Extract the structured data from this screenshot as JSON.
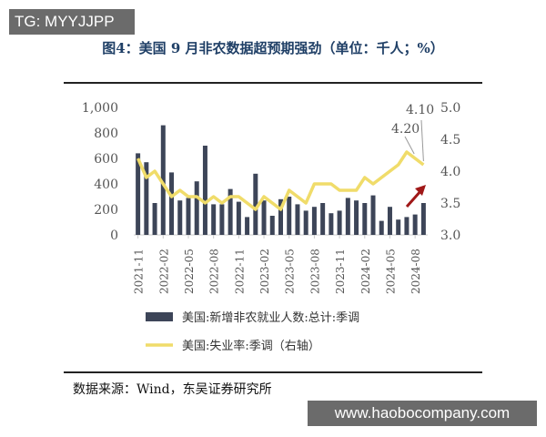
{
  "watermark_top": "TG: MYYJJPP",
  "watermark_bottom": "www.haobocompany.com",
  "title": "图4：美国 9 月非农数据超预期强劲（单位：千人；%）",
  "source": "数据来源：Wind，东吴证券研究所",
  "chart_data": {
    "type": "bar+line",
    "title": "图4：美国 9 月非农数据超预期强劲（单位：千人；%）",
    "categories": [
      "2021-11",
      "2021-12",
      "2022-01",
      "2022-02",
      "2022-03",
      "2022-04",
      "2022-05",
      "2022-06",
      "2022-07",
      "2022-08",
      "2022-09",
      "2022-10",
      "2022-11",
      "2022-12",
      "2023-01",
      "2023-02",
      "2023-03",
      "2023-04",
      "2023-05",
      "2023-06",
      "2023-07",
      "2023-08",
      "2023-09",
      "2023-10",
      "2023-11",
      "2023-12",
      "2024-01",
      "2024-02",
      "2024-03",
      "2024-04",
      "2024-05",
      "2024-06",
      "2024-07",
      "2024-08",
      "2024-09"
    ],
    "x_tick_labels": [
      "2021-11",
      "2022-02",
      "2022-05",
      "2022-08",
      "2022-11",
      "2023-02",
      "2023-05",
      "2023-08",
      "2023-11",
      "2024-02",
      "2024-05",
      "2024-08"
    ],
    "series": [
      {
        "name": "美国:新增非农就业人数:总计:季调",
        "type": "bar",
        "axis": "left",
        "color": "#3d4558",
        "values": [
          640,
          570,
          250,
          860,
          490,
          270,
          290,
          420,
          700,
          240,
          240,
          360,
          260,
          140,
          480,
          270,
          150,
          280,
          300,
          240,
          190,
          220,
          250,
          170,
          190,
          290,
          270,
          250,
          310,
          110,
          220,
          120,
          140,
          160,
          250
        ]
      },
      {
        "name": "美国:失业率:季调（右轴）",
        "type": "line",
        "axis": "right",
        "color": "#f0dc6a",
        "values": [
          4.2,
          3.9,
          4.0,
          3.8,
          3.6,
          3.7,
          3.6,
          3.6,
          3.5,
          3.6,
          3.5,
          3.6,
          3.6,
          3.5,
          3.4,
          3.6,
          3.5,
          3.4,
          3.7,
          3.6,
          3.5,
          3.8,
          3.8,
          3.8,
          3.7,
          3.7,
          3.7,
          3.9,
          3.8,
          3.9,
          4.0,
          4.1,
          4.3,
          4.2,
          4.1
        ]
      }
    ],
    "left_axis": {
      "range": [
        0,
        1000
      ],
      "ticks": [
        "0",
        "200",
        "400",
        "600",
        "800",
        "1,000"
      ]
    },
    "right_axis": {
      "range": [
        3.0,
        5.0
      ],
      "ticks": [
        "3.0",
        "3.5",
        "4.0",
        "4.5",
        "5.0"
      ]
    },
    "annotations": [
      "4.20",
      "4.10"
    ],
    "legend_position": "bottom",
    "arrow_color": "#a01818"
  }
}
